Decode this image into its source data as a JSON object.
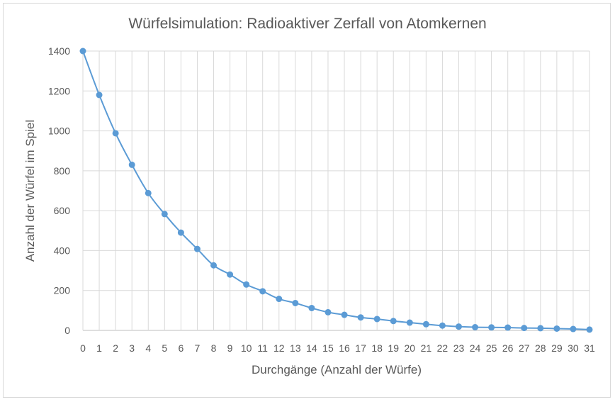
{
  "chart_data": {
    "type": "line",
    "title": "Würfelsimulation: Radioaktiver Zerfall von Atomkernen",
    "xlabel": "Durchgänge (Anzahl der Würfe)",
    "ylabel": "Anzahl der Würfel im Spiel",
    "categories": [
      "0",
      "1",
      "2",
      "3",
      "4",
      "5",
      "6",
      "7",
      "8",
      "9",
      "10",
      "11",
      "12",
      "13",
      "14",
      "15",
      "16",
      "17",
      "18",
      "19",
      "20",
      "21",
      "22",
      "23",
      "24",
      "25",
      "26",
      "27",
      "28",
      "29",
      "30",
      "31"
    ],
    "y_ticks": [
      "0",
      "200",
      "400",
      "600",
      "800",
      "1000",
      "1200",
      "1400"
    ],
    "ylim": [
      0,
      1400
    ],
    "grid": true,
    "legend": "none",
    "series": [
      {
        "color": "#5b9bd5",
        "values": [
          1400,
          1180,
          988,
          830,
          688,
          583,
          490,
          408,
          326,
          280,
          230,
          196,
          158,
          137,
          112,
          91,
          78,
          65,
          57,
          47,
          39,
          31,
          24,
          19,
          16,
          15,
          14,
          12,
          11,
          9,
          7,
          4
        ]
      }
    ]
  }
}
